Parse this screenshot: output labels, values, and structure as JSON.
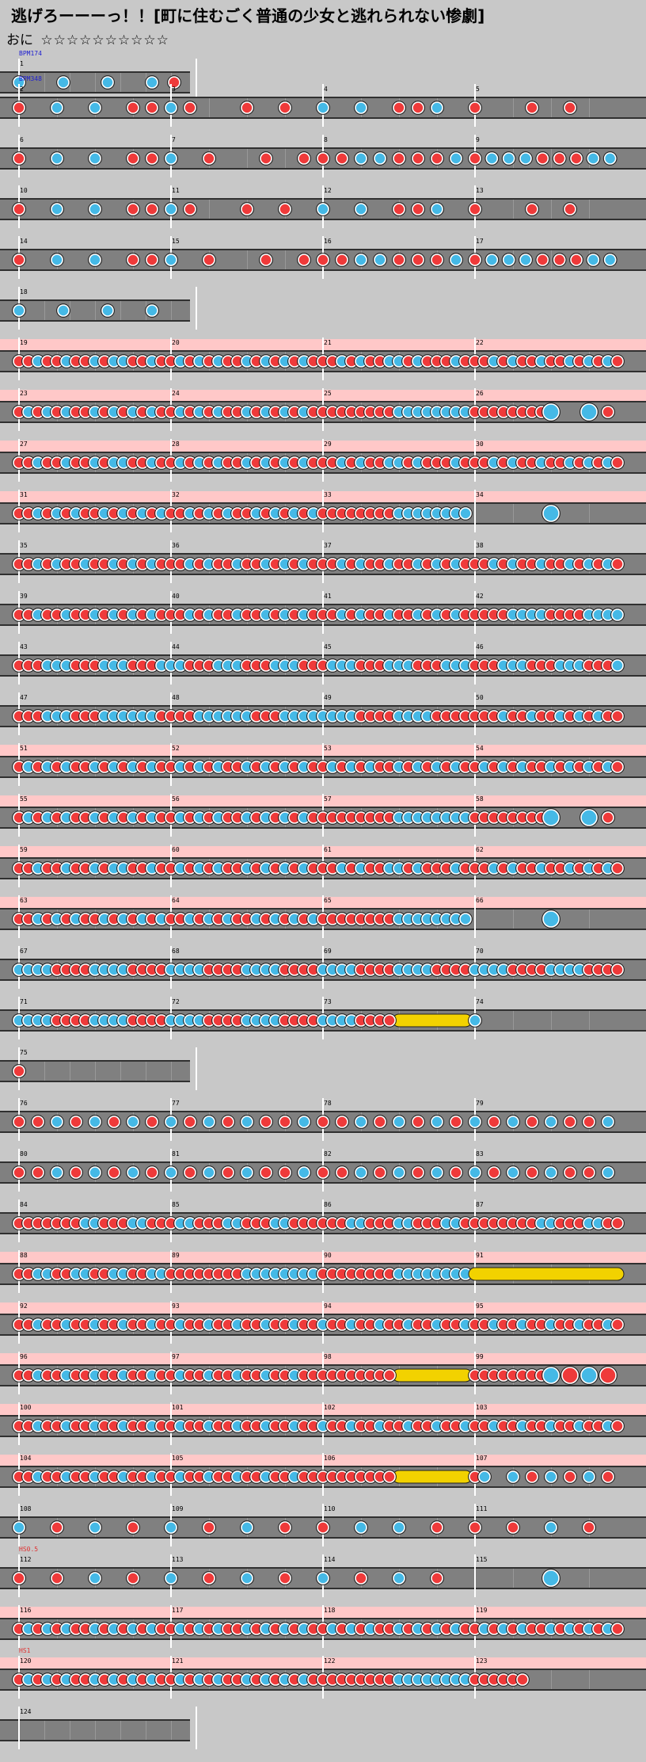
{
  "song": {
    "title": "逃げろーーーっ！！[町に住むごく普通の少女と逃れられない惨劇]",
    "course_label": "おに",
    "stars": "☆☆☆☆☆☆☆☆☆☆"
  },
  "colors": {
    "background": "#c8c8c8",
    "lane": "#808080",
    "gogo": "#ffc8c8",
    "don": "#ef3a3a",
    "ka": "#45b9e6",
    "roll": "#f2d200",
    "bpm_text": "#2020d0",
    "hs_text": "#e03030"
  },
  "annotations": [
    {
      "row": 0,
      "text": "BPM174",
      "color": "bpm"
    },
    {
      "row": 1,
      "text": "BPM348",
      "color": "bpm"
    },
    {
      "row": 30,
      "text": "HS0.5",
      "color": "hs"
    },
    {
      "row": 32,
      "text": "HS1",
      "color": "hs"
    }
  ],
  "rows": [
    {
      "bars": [
        1
      ],
      "half": true,
      "notes": "k...k...k...k.d."
    },
    {
      "bars": [
        2,
        3,
        4,
        5
      ],
      "notes": "d...k...k...d.d.|k.d.....d...d...|k...k...d.d.k...|d.....d...d....."
    },
    {
      "bars": [
        6,
        7,
        8,
        9
      ],
      "notes": "d...k...k...d.d.|k...d.....d...d.|d.d.k.k.d.d.d.k.|d.k.k.k.d.d.d.k.k."
    },
    {
      "bars": [
        10,
        11,
        12,
        13
      ],
      "notes": "d...k...k...d.d.|k.d.....d...d...|k...k...d.d.k...|d.....d...d....."
    },
    {
      "bars": [
        14,
        15,
        16,
        17
      ],
      "notes": "d...k...k...d.d.|k...d.....d...d.|d.d.k.k.d.d.d.k.|d.k.k.k.d.d.d.k.k."
    },
    {
      "bars": [
        18
      ],
      "half": true,
      "notes": "k...k...k...k..."
    },
    {
      "bars": [
        19,
        20,
        21,
        22
      ],
      "gogo": true,
      "notes": "ddkddkddkdkkddkd|dkdkdkddkdkdkdkd|ddkdkddkkdkdddkd|ddkdkddkddkdkdkd"
    },
    {
      "bars": [
        23,
        24,
        25,
        26
      ],
      "gogo": true,
      "notes": "dkdkdkddkdkdkdkd|dkdkdkddkdkdkdkd|ddddddddkkkkkkkk|ddddddddL...K.d."
    },
    {
      "bars": [
        27,
        28,
        29,
        30
      ],
      "gogo": true,
      "notes": "ddkddkddkdkkddkd|dkdkdkddkdkdkdkd|ddkdkddkkdkdddkd|ddkdkddkddkdkdkd"
    },
    {
      "bars": [
        31,
        32,
        33,
        34
      ],
      "gogo": true,
      "notes": "ddkdkdkddkdkdkdk|ddkdkdkddkdkdkdk|ddddddddkkkkkkkk|........L......."
    },
    {
      "bars": [
        35,
        36,
        37,
        38
      ],
      "notes": "ddkdkddkddkdkdkd|ddkdkddkddkdkdkd|ddkdkddkddkdkdkd|ddkdkddkddkdkdkd"
    },
    {
      "bars": [
        39,
        40,
        41,
        42
      ],
      "notes": "ddkddkddkdkdkdkd|ddkdkddkddkdkdkd|ddkdkddkddkdkdkd|ddddkkkkddddkkkk"
    },
    {
      "bars": [
        43,
        44,
        45,
        46
      ],
      "notes": "dddkkkdddkkkdddk|kkdddkkkdddkkkdd|dkkkdddkkkdddkkk|dddkkkdddkkkdddk"
    },
    {
      "bars": [
        47,
        48,
        49,
        50
      ],
      "notes": "dddkkkdddkkkkkkd|dddkkkkkkdddkkkk|kkkkddddkkkkdddd|dddkddkddkdkdkdd"
    },
    {
      "bars": [
        51,
        52,
        53,
        54
      ],
      "gogo": true,
      "notes": "dkdkdkddkdkdkdkd|dkdkdkddkdkdkdkd|dkdkdkddkdkdkdkd|dkdkdkddkdkdkdkd"
    },
    {
      "bars": [
        55,
        56,
        57,
        58
      ],
      "gogo": true,
      "notes": "dkdkdkddkdkdkdkd|dkdkdkddkdkdkdkd|ddddddddkkkkkkkk|ddddddddL...K.d."
    },
    {
      "bars": [
        59,
        60,
        61,
        62
      ],
      "gogo": true,
      "notes": "ddkddkddkdkkddkd|dkdkdkddkdkdkdkd|ddkdkddkkdkdddkd|ddkdkddkddkdkdkd"
    },
    {
      "bars": [
        63,
        64,
        65,
        66
      ],
      "gogo": true,
      "notes": "ddkdkdkddkdkdkdk|ddkdkdkddkdkdkdk|ddddddddkkkkkkkk|........L......."
    },
    {
      "bars": [
        67,
        68,
        69,
        70
      ],
      "notes": "kkkkddddkkkkdddd|kkkkddddkkkkdddd|kkkkddddkkkkdddd|kkkkddddkkkkdddd"
    },
    {
      "bars": [
        71,
        72,
        73,
        74
      ],
      "notes": "kkkkddddkkkkdddd|kkkkddddkkkkdddd|kkkkddddrrrrrrrr|k..............."
    },
    {
      "bars": [
        75
      ],
      "half": true,
      "notes": "d..............."
    },
    {
      "bars": [
        76,
        77,
        78,
        79
      ],
      "notes": "d.d.k.d.k.d.k.d.|k.d.k.d.k.d.d.k.|d.d.k.d.k.d.k.d.|k.d.k.d.k.d.d.k."
    },
    {
      "bars": [
        80,
        81,
        82,
        83
      ],
      "notes": "d.d.k.d.k.d.k.d.|k.d.k.d.k.d.d.k.|d.d.k.d.k.d.k.d.|k.d.k.d.k.d.d.k."
    },
    {
      "bars": [
        84,
        85,
        86,
        87
      ],
      "notes": "dddddddkkdddkkdd|dkkdddkkdddkkddd|dddkkdddkkdddkkd|dddddddkkdddkkdd"
    },
    {
      "bars": [
        88,
        89,
        90,
        91
      ],
      "gogo": true,
      "notes": "ddkkddkkddkkddkk|ddddddddkkkkkkkk|ddddddddkkkkkkkk|rrrrrrrrrrrrrrrr"
    },
    {
      "bars": [
        92,
        93,
        94,
        95
      ],
      "gogo": true,
      "notes": "ddkddkddkddkddkd|dkddkddkddkddkdd|kddkddkddkddkddk|ddkddkddkddkddkd"
    },
    {
      "bars": [
        96,
        97,
        98,
        99
      ],
      "gogo": true,
      "notes": "ddkddkddkddkddkd|dkddkddkddkddkdd|ddddddddrrrrrrrr|ddddddddK.D.K.D."
    },
    {
      "bars": [
        100,
        101,
        102,
        103
      ],
      "gogo": true,
      "notes": "ddkddkddkddkddkd|dkddkddkddkddkdd|kddkddkddkddkddk|ddkddkddkddkddkd"
    },
    {
      "bars": [
        104,
        105,
        106,
        107
      ],
      "gogo": true,
      "notes": "ddkddkddkddkddkd|dkddkddkddkddkdd|ddddddddrrrrrrrr|dk..k.d.k.d.k.d."
    },
    {
      "bars": [
        108,
        109,
        110,
        111
      ],
      "notes": "k...d...k...d...|k...d...k...d...|d...k...k...d...|d...d...k...d..."
    },
    {
      "bars": [
        112,
        113,
        114,
        115
      ],
      "notes": "d...d...k...d...|k...d...k...d...|k...d...k...d...|........L......."
    },
    {
      "bars": [
        116,
        117,
        118,
        119
      ],
      "gogo": true,
      "notes": "dkdkdkddkdkdkdkd|dkdkdkddkdkdkdkd|dkdkdkddkdkdkdkd|dkdkdkddkdkdkdkd"
    },
    {
      "bars": [
        120,
        121,
        122,
        123
      ],
      "gogo": true,
      "notes": "dkdkdkddkdkdkdkd|dkdkdkddkdkdkdkd|ddddddddkkkkkkkk|dddddd.........."
    },
    {
      "bars": [
        124
      ],
      "half": true,
      "notes": "................"
    }
  ]
}
